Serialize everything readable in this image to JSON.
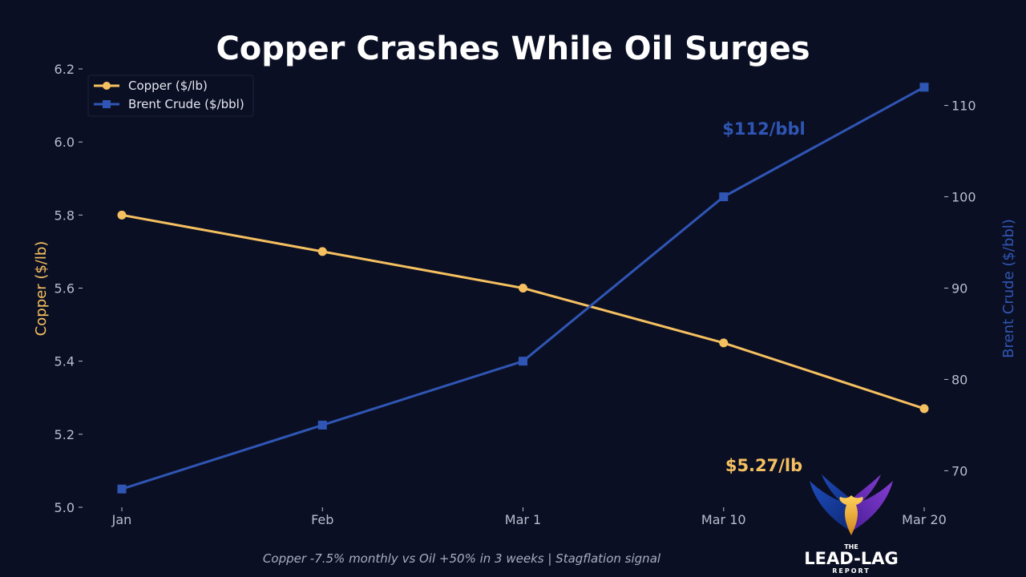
{
  "chart_data": {
    "type": "line",
    "title": "Copper Crashes While Oil Surges",
    "categories": [
      "Jan",
      "Feb",
      "Mar 1",
      "Mar 10",
      "Mar 20"
    ],
    "series": [
      {
        "name": "Copper ($/lb)",
        "axis": "left",
        "marker": "circle",
        "color": "#f5c060",
        "values": [
          5.8,
          5.7,
          5.6,
          5.45,
          5.27
        ]
      },
      {
        "name": "Brent Crude ($/bbl)",
        "axis": "right",
        "marker": "square",
        "color": "#2f56b4",
        "values": [
          68,
          75,
          82,
          100,
          112
        ]
      }
    ],
    "ylabel_left": "Copper ($/lb)",
    "ylabel_right": "Brent Crude ($/bbl)",
    "ylim_left": [
      5.0,
      6.2
    ],
    "ylim_right": [
      66.0,
      114.0
    ],
    "yticks_left": [
      "5.0",
      "5.2",
      "5.4",
      "5.6",
      "5.8",
      "6.0",
      "6.2"
    ],
    "yticks_right": [
      "70",
      "80",
      "90",
      "100",
      "110"
    ],
    "legend_position": "top-left",
    "annotations": [
      {
        "text": "$112/bbl",
        "color": "#2f56b4"
      },
      {
        "text": "$5.27/lb",
        "color": "#f5c060"
      }
    ],
    "footnote": "Copper -7.5% monthly vs Oil +50% in 3 weeks | Stagflation signal"
  },
  "logo": {
    "top": "THE",
    "main": "LEAD-LAG",
    "sub": "REPORT"
  },
  "colors": {
    "background": "#0b0f24",
    "copper": "#f5c060",
    "oil": "#2f56b4",
    "tick": "#b9bdcc"
  }
}
